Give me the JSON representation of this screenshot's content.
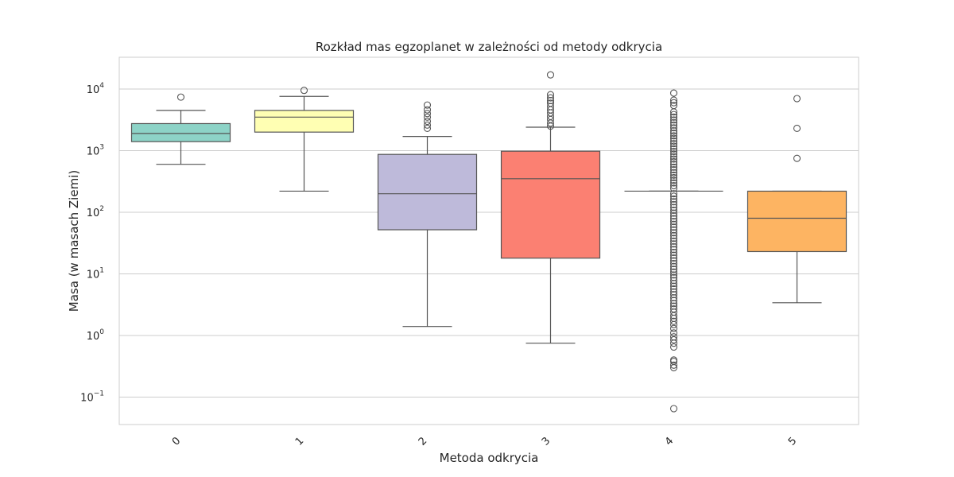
{
  "chart_data": {
    "type": "box",
    "title": "Rozkład mas egzoplanet w zależności od metody odkrycia",
    "xlabel": "Metoda odkrycia",
    "ylabel": "Masa (w masach Ziemi)",
    "yscale": "log",
    "ylim": [
      0.04,
      35000
    ],
    "grid": "horizontal",
    "categories": [
      "0",
      "1",
      "2",
      "3",
      "4",
      "5"
    ],
    "y_ticks": [
      {
        "value": 0.1,
        "base": "10",
        "exp": "−1"
      },
      {
        "value": 1,
        "base": "10",
        "exp": "0"
      },
      {
        "value": 10,
        "base": "10",
        "exp": "1"
      },
      {
        "value": 100,
        "base": "10",
        "exp": "2"
      },
      {
        "value": 1000,
        "base": "10",
        "exp": "3"
      },
      {
        "value": 10000,
        "base": "10",
        "exp": "4"
      }
    ],
    "boxes": [
      {
        "category": "0",
        "color": "#8dd3c7",
        "whisker_low": 600,
        "q1": 1400,
        "median": 1900,
        "q3": 2750,
        "whisker_high": 4500,
        "outliers": [
          7400
        ]
      },
      {
        "category": "1",
        "color": "#ffffb3",
        "whisker_low": 220,
        "q1": 2000,
        "median": 3500,
        "q3": 4500,
        "whisker_high": 7600,
        "outliers": [
          9500
        ]
      },
      {
        "category": "2",
        "color": "#bebada",
        "whisker_low": 1.4,
        "q1": 52,
        "median": 200,
        "q3": 870,
        "whisker_high": 1700,
        "outliers": [
          2300,
          2600,
          3000,
          3500,
          4000,
          4600,
          5500
        ]
      },
      {
        "category": "3",
        "color": "#fb8072",
        "whisker_low": 0.75,
        "q1": 18,
        "median": 350,
        "q3": 980,
        "whisker_high": 2400,
        "outliers": [
          2500,
          2800,
          3200,
          3600,
          4100,
          4600,
          5200,
          5900,
          6500,
          7200,
          8100,
          17000
        ]
      },
      {
        "category": "4",
        "color": "#80b1d3",
        "whisker_low": 220,
        "q1": 220,
        "median": 220,
        "q3": 220,
        "whisker_high": 220,
        "outliers": [
          0.065,
          0.3,
          0.33,
          0.38,
          0.4,
          0.65,
          0.75,
          0.85,
          0.95,
          1.1,
          1.3,
          1.5,
          1.7,
          1.9,
          2.1,
          2.4,
          2.7,
          3.0,
          3.3,
          3.7,
          4.1,
          4.6,
          5.1,
          5.7,
          6.3,
          7.0,
          7.8,
          8.7,
          9.6,
          10.7,
          11.9,
          13.2,
          14.7,
          16.3,
          18.1,
          20.1,
          22.3,
          24.8,
          27.5,
          30.6,
          34.0,
          37.7,
          41.9,
          46.5,
          51.7,
          57.4,
          63.7,
          70.8,
          78.6,
          87.3,
          97.0,
          108,
          120,
          133,
          148,
          164,
          182,
          200,
          245,
          270,
          300,
          330,
          365,
          400,
          440,
          490,
          540,
          600,
          660,
          730,
          800,
          880,
          970,
          1070,
          1180,
          1300,
          1430,
          1580,
          1740,
          1920,
          2100,
          2350,
          2600,
          2850,
          3150,
          3500,
          3850,
          4250,
          5400,
          6000,
          6600,
          8600
        ]
      },
      {
        "category": "5",
        "color": "#fdb462",
        "whisker_low": 3.4,
        "q1": 23,
        "median": 80,
        "q3": 220,
        "whisker_high": 220,
        "outliers": [
          750,
          2300,
          7000
        ]
      }
    ]
  }
}
